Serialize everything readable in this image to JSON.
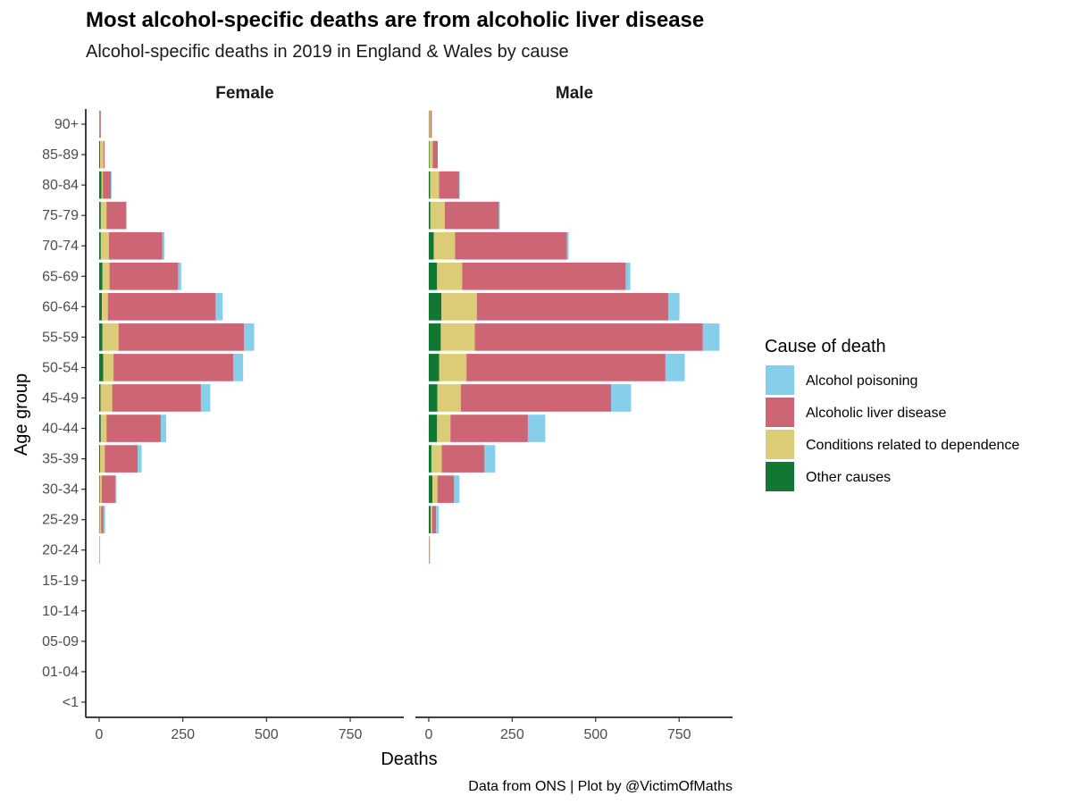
{
  "chart_data": {
    "type": "bar",
    "orientation": "horizontal",
    "stacked": true,
    "title": "Most alcohol-specific deaths are from alcoholic liver disease",
    "subtitle": "Alcohol-specific deaths in 2019 in England & Wales by cause",
    "xlabel": "Deaths",
    "ylabel": "Age group",
    "caption": "Data from ONS | Plot by @VictimOfMaths",
    "xlim": [
      -40,
      910
    ],
    "xticks": [
      0,
      250,
      500,
      750
    ],
    "grid": false,
    "legend_position": "right",
    "legend_title": "Cause of death",
    "categories": [
      "<1",
      "01-04",
      "05-09",
      "10-14",
      "15-19",
      "20-24",
      "25-29",
      "30-34",
      "35-39",
      "40-44",
      "45-49",
      "50-54",
      "55-59",
      "60-64",
      "65-69",
      "70-74",
      "75-79",
      "80-84",
      "85-89",
      "90+"
    ],
    "stack_order": [
      "Other causes",
      "Conditions related to dependence",
      "Alcoholic liver disease",
      "Alcohol poisoning"
    ],
    "legend": [
      {
        "name": "Alcohol poisoning",
        "color": "#87CEEB"
      },
      {
        "name": "Alcoholic liver disease",
        "color": "#CD6575"
      },
      {
        "name": "Conditions related to dependence",
        "color": "#DDCC77"
      },
      {
        "name": "Other causes",
        "color": "#117733"
      }
    ],
    "panels": [
      {
        "label": "Female",
        "series": [
          {
            "name": "Other causes",
            "values": [
              0,
              0,
              0,
              0,
              0,
              0,
              1,
              2,
              3,
              5,
              4,
              12,
              10,
              8,
              10,
              5,
              5,
              7,
              3,
              1
            ]
          },
          {
            "name": "Conditions related to dependence",
            "values": [
              0,
              0,
              0,
              0,
              0,
              0,
              5,
              6,
              14,
              17,
              35,
              31,
              48,
              18,
              21,
              24,
              17,
              4,
              10,
              2
            ]
          },
          {
            "name": "Alcoholic liver disease",
            "values": [
              0,
              0,
              0,
              0,
              0,
              0,
              7,
              40,
              98,
              162,
              265,
              358,
              375,
              322,
              205,
              160,
              58,
              24,
              3,
              2
            ]
          },
          {
            "name": "Alcohol poisoning",
            "values": [
              0,
              0,
              0,
              0,
              0,
              3,
              5,
              4,
              12,
              16,
              28,
              29,
              30,
              21,
              9,
              6,
              2,
              1,
              0,
              0
            ]
          }
        ]
      },
      {
        "label": "Male",
        "series": [
          {
            "name": "Other causes",
            "values": [
              0,
              0,
              0,
              0,
              0,
              0,
              6,
              11,
              8,
              25,
              26,
              31,
              36,
              38,
              25,
              15,
              5,
              4,
              2,
              1
            ]
          },
          {
            "name": "Conditions related to dependence",
            "values": [
              0,
              0,
              0,
              0,
              0,
              1,
              4,
              15,
              31,
              40,
              70,
              82,
              102,
              106,
              75,
              64,
              43,
              27,
              10,
              4
            ]
          },
          {
            "name": "Alcoholic liver disease",
            "values": [
              0,
              0,
              0,
              0,
              0,
              1,
              12,
              50,
              128,
              232,
              450,
              596,
              683,
              574,
              490,
              335,
              162,
              60,
              15,
              4
            ]
          },
          {
            "name": "Alcohol poisoning",
            "values": [
              0,
              0,
              0,
              0,
              0,
              2,
              8,
              16,
              32,
              52,
              60,
              58,
              50,
              33,
              14,
              5,
              3,
              1,
              0,
              0
            ]
          }
        ]
      }
    ]
  }
}
